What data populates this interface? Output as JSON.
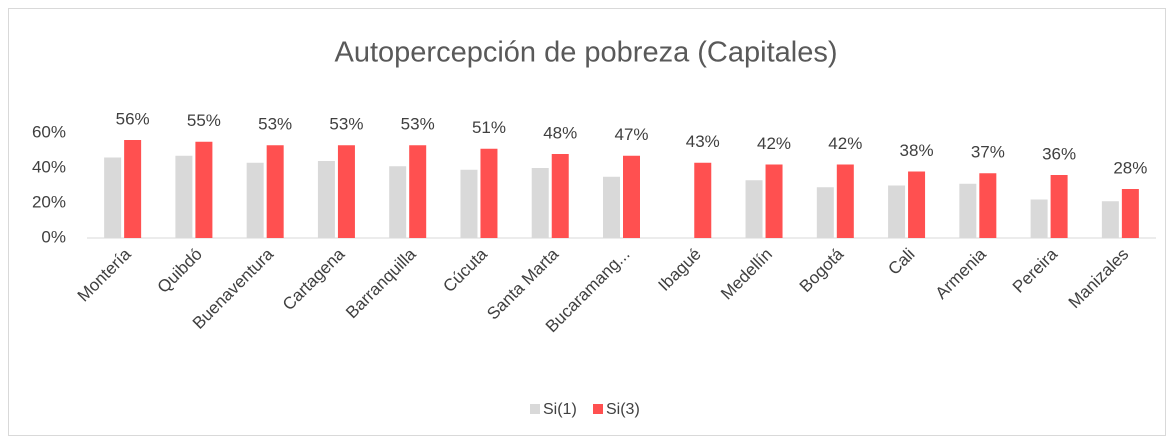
{
  "chart_data": {
    "type": "bar",
    "title": "Autopercepción de pobreza (Capitales)",
    "categories": [
      "Montería",
      "Quibdó",
      "Buenaventura",
      "Cartagena",
      "Barranquilla",
      "Cúcuta",
      "Santa Marta",
      "Bucaramang...",
      "Ibagué",
      "Medellín",
      "Bogotá",
      "Cali",
      "Armenia",
      "Pereira",
      "Manizales"
    ],
    "series": [
      {
        "name": "Si(1)",
        "color": "#d9d9d9",
        "values": [
          46,
          47,
          43,
          44,
          41,
          39,
          40,
          35,
          null,
          33,
          29,
          30,
          31,
          22,
          21
        ]
      },
      {
        "name": "Si(3)",
        "color": "#ff5050",
        "values": [
          56,
          55,
          53,
          53,
          53,
          51,
          48,
          47,
          43,
          42,
          42,
          38,
          37,
          36,
          28
        ],
        "value_labels": [
          "56%",
          "55%",
          "53%",
          "53%",
          "53%",
          "51%",
          "48%",
          "47%",
          "43%",
          "42%",
          "42%",
          "38%",
          "37%",
          "36%",
          "28%"
        ]
      }
    ],
    "ylim": [
      0,
      60
    ],
    "yticks": [
      {
        "value": 0,
        "label": "0%"
      },
      {
        "value": 20,
        "label": "20%"
      },
      {
        "value": 40,
        "label": "40%"
      },
      {
        "value": 60,
        "label": "60%"
      }
    ],
    "grid": false,
    "legend": "bottom"
  }
}
